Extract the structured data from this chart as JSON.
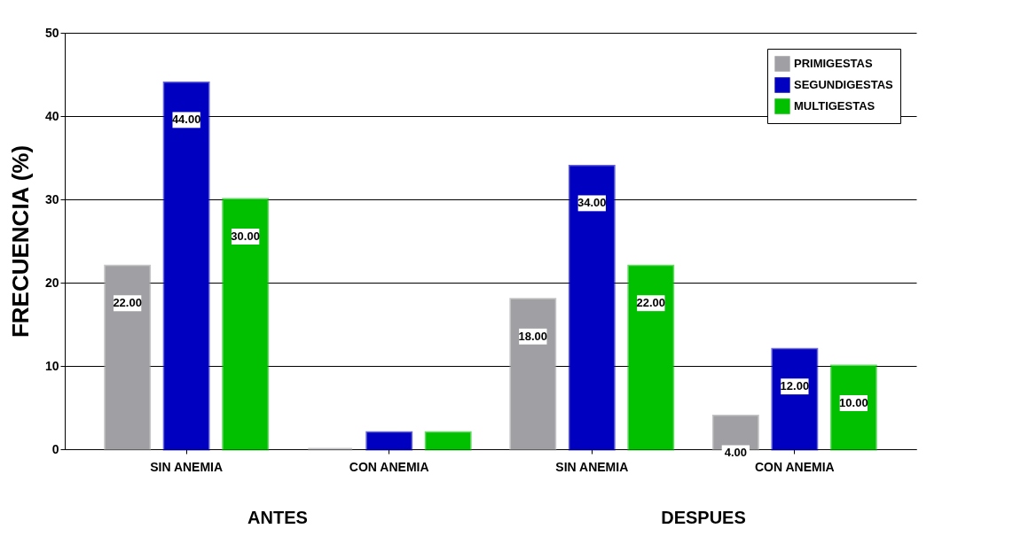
{
  "chart_data": {
    "type": "bar",
    "ylabel": "FRECUENCIA (%)",
    "categories": [
      "SIN ANEMIA",
      "CON ANEMIA",
      "SIN ANEMIA",
      "CON ANEMIA"
    ],
    "series": [
      {
        "name": "PRIMIGESTAS",
        "color": "#a0a0a4",
        "values": [
          22,
          0,
          18,
          4
        ],
        "value_labels": [
          "22.00",
          null,
          "18.00",
          "4.00"
        ]
      },
      {
        "name": "SEGUNDIGESTAS",
        "color": "#0000c0",
        "values": [
          44,
          2,
          34,
          12
        ],
        "value_labels": [
          "44.00",
          null,
          "34.00",
          "12.00"
        ]
      },
      {
        "name": "MULTIGESTAS",
        "color": "#00c000",
        "values": [
          30,
          2,
          22,
          10
        ],
        "value_labels": [
          "30.00",
          null,
          "22.00",
          "10.00"
        ]
      }
    ],
    "ylim": [
      0,
      50
    ],
    "yticks": [
      0,
      10,
      20,
      30,
      40,
      50
    ],
    "grid": "y",
    "legend": "top right",
    "annotations": [
      "ANTES",
      "DESPUES"
    ]
  }
}
